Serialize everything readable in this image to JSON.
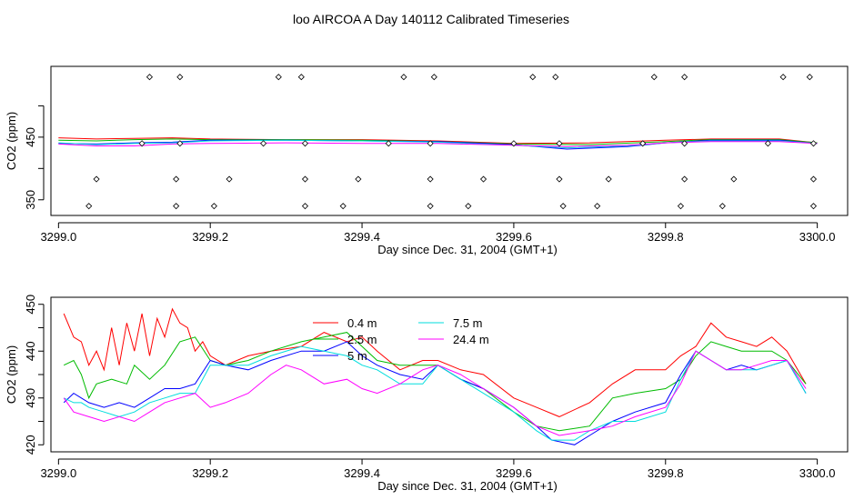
{
  "page_title": "loo AIRCOA A  Day 140112  Calibrated Timeseries",
  "chart_data": [
    {
      "type": "scatter",
      "title": "loo AIRCOA A  Day 140112  Calibrated Timeseries",
      "xlabel": "Day since Dec. 31, 2004 (GMT+1)",
      "ylabel": "CO2 (ppm)",
      "xlim": [
        3298.99,
        3300.04
      ],
      "ylim": [
        325,
        563
      ],
      "xticks": [
        "3299.0",
        "3299.2",
        "3299.4",
        "3299.6",
        "3299.8",
        "3300.0"
      ],
      "xtick_values": [
        3299.0,
        3299.2,
        3299.4,
        3299.6,
        3299.8,
        3300.0
      ],
      "yticks": [
        "350",
        "450"
      ],
      "ytick_values": [
        350,
        450
      ],
      "ytick_minor": [
        400,
        500
      ],
      "series": [
        {
          "color": "#ff0000",
          "values": [
            [
              3299.0,
              449
            ],
            [
              3299.05,
              447
            ],
            [
              3299.1,
              448
            ],
            [
              3299.15,
              449
            ],
            [
              3299.2,
              447
            ],
            [
              3299.3,
              446
            ],
            [
              3299.4,
              446
            ],
            [
              3299.5,
              444
            ],
            [
              3299.6,
              440
            ],
            [
              3299.7,
              441
            ],
            [
              3299.8,
              445
            ],
            [
              3299.86,
              447
            ],
            [
              3299.95,
              447
            ],
            [
              3300.0,
              441
            ]
          ]
        },
        {
          "color": "#00bb00",
          "values": [
            [
              3299.0,
              445
            ],
            [
              3299.05,
              444
            ],
            [
              3299.1,
              446
            ],
            [
              3299.15,
              447
            ],
            [
              3299.2,
              446
            ],
            [
              3299.3,
              446
            ],
            [
              3299.4,
              445
            ],
            [
              3299.5,
              443
            ],
            [
              3299.6,
              439
            ],
            [
              3299.7,
              438
            ],
            [
              3299.8,
              443
            ],
            [
              3299.86,
              446
            ],
            [
              3299.95,
              446
            ],
            [
              3300.0,
              441
            ]
          ]
        },
        {
          "color": "#0000ff",
          "values": [
            [
              3299.0,
              440
            ],
            [
              3299.05,
              439
            ],
            [
              3299.1,
              441
            ],
            [
              3299.15,
              442
            ],
            [
              3299.2,
              445
            ],
            [
              3299.3,
              445
            ],
            [
              3299.4,
              444
            ],
            [
              3299.5,
              443
            ],
            [
              3299.6,
              438
            ],
            [
              3299.67,
              431
            ],
            [
              3299.75,
              435
            ],
            [
              3299.8,
              441
            ],
            [
              3299.86,
              445
            ],
            [
              3299.95,
              445
            ],
            [
              3300.0,
              440
            ]
          ]
        },
        {
          "color": "#00dddd",
          "values": [
            [
              3299.0,
              441
            ],
            [
              3299.05,
              438
            ],
            [
              3299.1,
              440
            ],
            [
              3299.15,
              441
            ],
            [
              3299.2,
              444
            ],
            [
              3299.3,
              445
            ],
            [
              3299.4,
              444
            ],
            [
              3299.5,
              442
            ],
            [
              3299.6,
              437
            ],
            [
              3299.67,
              433
            ],
            [
              3299.75,
              436
            ],
            [
              3299.8,
              441
            ],
            [
              3299.86,
              444
            ],
            [
              3299.95,
              444
            ],
            [
              3300.0,
              440
            ]
          ]
        },
        {
          "color": "#ff00ff",
          "values": [
            [
              3299.0,
              439
            ],
            [
              3299.05,
              436
            ],
            [
              3299.1,
              436
            ],
            [
              3299.15,
              439
            ],
            [
              3299.2,
              440
            ],
            [
              3299.3,
              441
            ],
            [
              3299.4,
              440
            ],
            [
              3299.5,
              440
            ],
            [
              3299.6,
              437
            ],
            [
              3299.67,
              435
            ],
            [
              3299.75,
              437
            ],
            [
              3299.8,
              441
            ],
            [
              3299.86,
              443
            ],
            [
              3299.95,
              443
            ],
            [
              3300.0,
              440
            ]
          ]
        }
      ],
      "markers": [
        [
          3299.12,
          546
        ],
        [
          3299.16,
          546
        ],
        [
          3299.29,
          546
        ],
        [
          3299.32,
          546
        ],
        [
          3299.455,
          546
        ],
        [
          3299.495,
          546
        ],
        [
          3299.625,
          546
        ],
        [
          3299.655,
          546
        ],
        [
          3299.785,
          546
        ],
        [
          3299.825,
          546
        ],
        [
          3299.955,
          546
        ],
        [
          3299.99,
          546
        ],
        [
          3299.11,
          440
        ],
        [
          3299.16,
          440
        ],
        [
          3299.27,
          440
        ],
        [
          3299.325,
          440
        ],
        [
          3299.435,
          440
        ],
        [
          3299.49,
          440
        ],
        [
          3299.6,
          440
        ],
        [
          3299.66,
          440
        ],
        [
          3299.77,
          440
        ],
        [
          3299.825,
          440
        ],
        [
          3299.935,
          440
        ],
        [
          3299.995,
          440
        ],
        [
          3299.05,
          383
        ],
        [
          3299.155,
          383
        ],
        [
          3299.225,
          383
        ],
        [
          3299.325,
          383
        ],
        [
          3299.395,
          383
        ],
        [
          3299.49,
          383
        ],
        [
          3299.56,
          383
        ],
        [
          3299.66,
          383
        ],
        [
          3299.725,
          383
        ],
        [
          3299.825,
          383
        ],
        [
          3299.89,
          383
        ],
        [
          3299.995,
          383
        ],
        [
          3299.04,
          340
        ],
        [
          3299.155,
          340
        ],
        [
          3299.205,
          340
        ],
        [
          3299.325,
          340
        ],
        [
          3299.375,
          340
        ],
        [
          3299.49,
          340
        ],
        [
          3299.54,
          340
        ],
        [
          3299.665,
          340
        ],
        [
          3299.71,
          340
        ],
        [
          3299.82,
          340
        ],
        [
          3299.875,
          340
        ],
        [
          3299.995,
          340
        ]
      ]
    },
    {
      "type": "line",
      "title": "",
      "xlabel": "Day since Dec. 31, 2004 (GMT+1)",
      "ylabel": "CO2 (ppm)",
      "xlim": [
        3298.99,
        3300.04
      ],
      "ylim": [
        418.5,
        451.5
      ],
      "xticks": [
        "3299.0",
        "3299.2",
        "3299.4",
        "3299.6",
        "3299.8",
        "3300.0"
      ],
      "xtick_values": [
        3299.0,
        3299.2,
        3299.4,
        3299.6,
        3299.8,
        3300.0
      ],
      "yticks": [
        "420",
        "430",
        "440",
        "450"
      ],
      "ytick_values": [
        420,
        430,
        440,
        450
      ],
      "ytick_minor": [
        425,
        435,
        445
      ],
      "legend": {
        "position": "top-center",
        "columns": 2
      },
      "series": [
        {
          "name": "0.4 m",
          "color": "#ff0000",
          "x": [
            3299.007,
            3299.02,
            3299.03,
            3299.04,
            3299.05,
            3299.06,
            3299.07,
            3299.08,
            3299.09,
            3299.1,
            3299.11,
            3299.12,
            3299.13,
            3299.14,
            3299.15,
            3299.16,
            3299.17,
            3299.18,
            3299.19,
            3299.2,
            3299.22,
            3299.25,
            3299.28,
            3299.32,
            3299.35,
            3299.38,
            3299.4,
            3299.42,
            3299.45,
            3299.48,
            3299.5,
            3299.53,
            3299.56,
            3299.6,
            3299.63,
            3299.66,
            3299.7,
            3299.73,
            3299.76,
            3299.8,
            3299.82,
            3299.84,
            3299.86,
            3299.88,
            3299.9,
            3299.92,
            3299.94,
            3299.96,
            3299.985
          ],
          "values": [
            448,
            443,
            442,
            437,
            440,
            436,
            445,
            437,
            446,
            440,
            448,
            439,
            447,
            443,
            449,
            446,
            445,
            440,
            442,
            439,
            437,
            439,
            440,
            441,
            444,
            442,
            443,
            440,
            436,
            438,
            438,
            436,
            435,
            430,
            428,
            426,
            429,
            433,
            436,
            436,
            439,
            441,
            446,
            443,
            442,
            441,
            443,
            440,
            433
          ]
        },
        {
          "name": "2.5 m",
          "color": "#00bb00",
          "x": [
            3299.007,
            3299.02,
            3299.03,
            3299.04,
            3299.05,
            3299.07,
            3299.09,
            3299.1,
            3299.12,
            3299.14,
            3299.16,
            3299.18,
            3299.2,
            3299.22,
            3299.25,
            3299.28,
            3299.32,
            3299.35,
            3299.38,
            3299.4,
            3299.42,
            3299.45,
            3299.48,
            3299.5,
            3299.53,
            3299.56,
            3299.6,
            3299.63,
            3299.66,
            3299.7,
            3299.73,
            3299.76,
            3299.8,
            3299.82,
            3299.84,
            3299.86,
            3299.88,
            3299.9,
            3299.92,
            3299.94,
            3299.96,
            3299.985
          ],
          "values": [
            437,
            438,
            435,
            430,
            433,
            434,
            433,
            437,
            434,
            437,
            442,
            443,
            438,
            437,
            438,
            440,
            442,
            443,
            444,
            441,
            438,
            437,
            437,
            437,
            434,
            432,
            427,
            424,
            423,
            424,
            430,
            431,
            432,
            434,
            439,
            442,
            441,
            440,
            440,
            440,
            438,
            433
          ]
        },
        {
          "name": "5 m",
          "color": "#0000ff",
          "x": [
            3299.007,
            3299.02,
            3299.03,
            3299.04,
            3299.06,
            3299.08,
            3299.1,
            3299.12,
            3299.14,
            3299.16,
            3299.18,
            3299.2,
            3299.22,
            3299.25,
            3299.28,
            3299.32,
            3299.35,
            3299.38,
            3299.4,
            3299.42,
            3299.45,
            3299.48,
            3299.5,
            3299.53,
            3299.56,
            3299.6,
            3299.63,
            3299.65,
            3299.68,
            3299.7,
            3299.73,
            3299.76,
            3299.8,
            3299.82,
            3299.84,
            3299.86,
            3299.88,
            3299.9,
            3299.92,
            3299.94,
            3299.96,
            3299.985
          ],
          "values": [
            429,
            431,
            430,
            429,
            428,
            429,
            428,
            430,
            432,
            432,
            433,
            438,
            437,
            436,
            438,
            440,
            440,
            442,
            439,
            437,
            435,
            434,
            437,
            434,
            432,
            428,
            424,
            421,
            420,
            422,
            425,
            427,
            429,
            435,
            440,
            438,
            436,
            437,
            436,
            437,
            438,
            431
          ]
        },
        {
          "name": "7.5 m",
          "color": "#00dddd",
          "x": [
            3299.007,
            3299.02,
            3299.03,
            3299.04,
            3299.06,
            3299.08,
            3299.1,
            3299.12,
            3299.14,
            3299.16,
            3299.18,
            3299.2,
            3299.22,
            3299.25,
            3299.28,
            3299.32,
            3299.35,
            3299.38,
            3299.4,
            3299.42,
            3299.45,
            3299.48,
            3299.5,
            3299.53,
            3299.56,
            3299.6,
            3299.63,
            3299.65,
            3299.68,
            3299.7,
            3299.73,
            3299.76,
            3299.8,
            3299.82,
            3299.84,
            3299.86,
            3299.88,
            3299.9,
            3299.92,
            3299.94,
            3299.96,
            3299.985
          ],
          "values": [
            430,
            429,
            429,
            428,
            427,
            426,
            427,
            429,
            430,
            431,
            431,
            437,
            437,
            437,
            439,
            441,
            440,
            439,
            437,
            436,
            433,
            433,
            437,
            434,
            431,
            427,
            423,
            421,
            421,
            423,
            425,
            425,
            427,
            434,
            440,
            438,
            436,
            436,
            436,
            437,
            438,
            431
          ]
        },
        {
          "name": "24.4 m",
          "color": "#ff00ff",
          "x": [
            3299.007,
            3299.02,
            3299.04,
            3299.06,
            3299.08,
            3299.1,
            3299.12,
            3299.14,
            3299.16,
            3299.18,
            3299.2,
            3299.22,
            3299.25,
            3299.28,
            3299.3,
            3299.32,
            3299.35,
            3299.38,
            3299.4,
            3299.42,
            3299.45,
            3299.48,
            3299.5,
            3299.53,
            3299.56,
            3299.6,
            3299.63,
            3299.66,
            3299.7,
            3299.73,
            3299.76,
            3299.8,
            3299.82,
            3299.84,
            3299.86,
            3299.88,
            3299.9,
            3299.92,
            3299.94,
            3299.96,
            3299.985
          ],
          "values": [
            430,
            427,
            426,
            425,
            426,
            425,
            427,
            429,
            430,
            431,
            428,
            429,
            431,
            435,
            437,
            436,
            433,
            434,
            432,
            431,
            433,
            436,
            437,
            435,
            432,
            428,
            424,
            422,
            423,
            424,
            426,
            428,
            433,
            440,
            438,
            436,
            436,
            437,
            438,
            438,
            432
          ]
        }
      ]
    }
  ]
}
